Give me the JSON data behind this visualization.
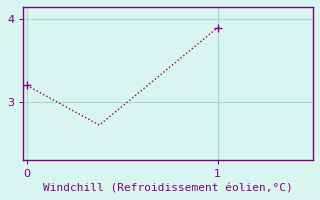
{
  "x": [
    0,
    0.38,
    1.0
  ],
  "y": [
    3.2,
    2.72,
    3.9
  ],
  "line_color": "#800080",
  "marker_color": "#800080",
  "background_color": "#d8f5ef",
  "xlabel": "Windchill (Refroidissement éolien,°C)",
  "xlabel_color": "#800080",
  "axis_color": "#800080",
  "tick_color": "#800080",
  "grid_color": "#a8d8cf",
  "xlim": [
    -0.02,
    1.5
  ],
  "ylim": [
    2.3,
    4.15
  ],
  "yticks": [
    3,
    4
  ],
  "xticks": [
    0,
    1
  ],
  "xlabel_fontsize": 8.0,
  "tick_fontsize": 8,
  "line_width": 1.0,
  "linestyle": "dotted",
  "marker": "+",
  "marker_size": 6
}
